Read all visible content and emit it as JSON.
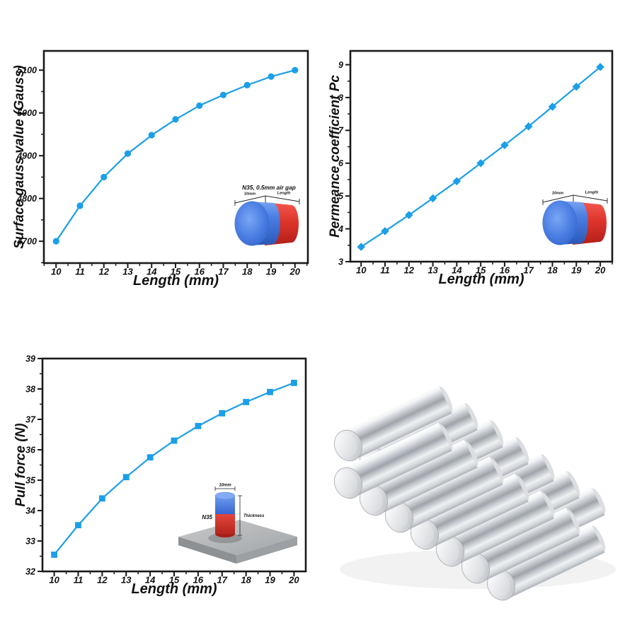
{
  "colors": {
    "accent_blue": "#1b9fe8",
    "axis_black": "#1a1a1a",
    "magnet_blue": "#4b7ee3",
    "magnet_red": "#dd352b",
    "steel_gray": "#a2a5a7",
    "silver_light": "#f0f2f4",
    "silver_dark": "#9fa4aa"
  },
  "chart_data": [
    {
      "id": "surface-gauss",
      "type": "line",
      "marker": "circle",
      "title": "",
      "xlabel": "Length (mm)",
      "ylabel": "Surface gauss value (Gauss)",
      "x": [
        10,
        11,
        12,
        13,
        14,
        15,
        16,
        17,
        18,
        19,
        20
      ],
      "y": [
        4700,
        4783,
        4850,
        4905,
        4948,
        4985,
        5017,
        5042,
        5065,
        5085,
        5100
      ],
      "xlim": [
        9.49,
        20.54
      ],
      "ylim": [
        4649,
        5145
      ],
      "xticks": [
        10,
        11,
        12,
        13,
        14,
        15,
        16,
        17,
        18,
        19,
        20
      ],
      "yticks": [
        4700,
        4800,
        4900,
        5000,
        5100
      ],
      "x_minor_step": 0.5,
      "y_minor_step": 50,
      "grid": false,
      "legend": null,
      "inset": {
        "type": "cylinder-magnet-diagram",
        "caption": "N35, 0.5mm air gap",
        "diameter_label": "10mm",
        "length_label": "Length"
      }
    },
    {
      "id": "permeance",
      "type": "line",
      "marker": "diamond",
      "title": "",
      "xlabel": "Length (mm)",
      "ylabel": "Permeance coefficient Pc",
      "x": [
        10,
        11,
        12,
        13,
        14,
        15,
        16,
        17,
        18,
        19,
        20
      ],
      "y": [
        3.45,
        3.93,
        4.42,
        4.93,
        5.45,
        6.0,
        6.55,
        7.12,
        7.72,
        8.33,
        8.93
      ],
      "xlim": [
        9.55,
        20.5
      ],
      "ylim": [
        3.0,
        9.42
      ],
      "xticks": [
        10,
        11,
        12,
        13,
        14,
        15,
        16,
        17,
        18,
        19,
        20
      ],
      "yticks": [
        3,
        4,
        5,
        6,
        7,
        8,
        9
      ],
      "x_minor_step": 0.5,
      "y_minor_step": 0.5,
      "grid": false,
      "legend": null,
      "inset": {
        "type": "cylinder-magnet-diagram",
        "caption": "",
        "diameter_label": "10mm",
        "length_label": "Length"
      }
    },
    {
      "id": "pull-force",
      "type": "line",
      "marker": "square",
      "title": "",
      "xlabel": "Length (mm)",
      "ylabel": "Pull force (N)",
      "x": [
        10,
        11,
        12,
        13,
        14,
        15,
        16,
        17,
        18,
        19,
        20
      ],
      "y": [
        32.55,
        33.52,
        34.4,
        35.1,
        35.75,
        36.3,
        36.78,
        37.2,
        37.57,
        37.9,
        38.2
      ],
      "xlim": [
        9.51,
        20.49
      ],
      "ylim": [
        32,
        39
      ],
      "xticks": [
        10,
        11,
        12,
        13,
        14,
        15,
        16,
        17,
        18,
        19,
        20
      ],
      "yticks": [
        32,
        33,
        34,
        35,
        36,
        37,
        38,
        39
      ],
      "x_minor_step": 0.5,
      "y_minor_step": 0.5,
      "grid": false,
      "legend": null,
      "inset": {
        "type": "magnet-on-steel-plate-diagram",
        "grade_label": "N35",
        "diameter_label": "10mm",
        "thickness_label": "Thickness"
      }
    }
  ],
  "photo": {
    "description": "Two stacked rows of silver cylindrical neodymium magnets",
    "rows": 2,
    "magnets_per_row": 7
  }
}
